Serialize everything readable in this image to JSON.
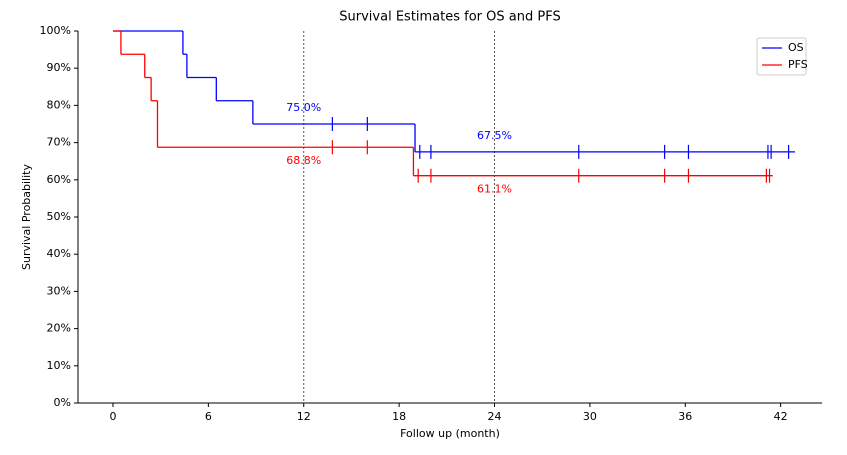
{
  "chart_data": {
    "type": "step",
    "title": "Survival Estimates for OS and PFS",
    "x_label": "Follow up (month)",
    "y_label": "Survival Probability",
    "xlim": [
      -2.2,
      44.6
    ],
    "ylim": [
      0,
      100
    ],
    "xticks": [
      0,
      6,
      12,
      18,
      24,
      30,
      36,
      42
    ],
    "yticks": [
      {
        "value": 0,
        "label": "0%"
      },
      {
        "value": 10,
        "label": "10%"
      },
      {
        "value": 20,
        "label": "20%"
      },
      {
        "value": 30,
        "label": "30%"
      },
      {
        "value": 40,
        "label": "40%"
      },
      {
        "value": 50,
        "label": "50%"
      },
      {
        "value": 60,
        "label": "60%"
      },
      {
        "value": 70,
        "label": "70%"
      },
      {
        "value": 80,
        "label": "80%"
      },
      {
        "value": 90,
        "label": "90%"
      },
      {
        "value": 100,
        "label": "100%"
      }
    ],
    "vlines": [
      12,
      24
    ],
    "legend": "upper right",
    "series": [
      {
        "name": "OS",
        "color": "#0000ff",
        "x": [
          0,
          4.4,
          4.65,
          6.5,
          8.8,
          19.0,
          42.9
        ],
        "values": [
          100,
          93.75,
          87.5,
          81.25,
          75,
          67.5,
          67.5
        ],
        "censored": {
          "x": [
            13.8,
            16,
            19.3,
            20,
            29.3,
            34.7,
            36.2,
            41.2,
            41.4,
            42.5
          ],
          "values": [
            75,
            75,
            67.5,
            67.5,
            67.5,
            67.5,
            67.5,
            67.5,
            67.5,
            67.5
          ]
        },
        "annotations": [
          {
            "x": 12,
            "value": 75,
            "label": "75.0%"
          },
          {
            "x": 24,
            "value": 67.5,
            "label": "67.5%"
          }
        ]
      },
      {
        "name": "PFS",
        "color": "#ff0000",
        "x": [
          0,
          0.5,
          2.0,
          2.4,
          2.8,
          18.9,
          41.5
        ],
        "values": [
          100,
          93.75,
          87.5,
          81.25,
          68.75,
          61.1,
          61.1
        ],
        "censored": {
          "x": [
            13.8,
            16,
            19.2,
            20,
            29.3,
            34.7,
            36.2,
            41.1,
            41.3
          ],
          "values": [
            68.75,
            68.75,
            61.1,
            61.1,
            61.1,
            61.1,
            61.1,
            61.1,
            61.1
          ]
        },
        "annotations": [
          {
            "x": 12,
            "value": 68.8,
            "label": "68.8%"
          },
          {
            "x": 24,
            "value": 61.1,
            "label": "61.1%"
          }
        ]
      }
    ]
  }
}
